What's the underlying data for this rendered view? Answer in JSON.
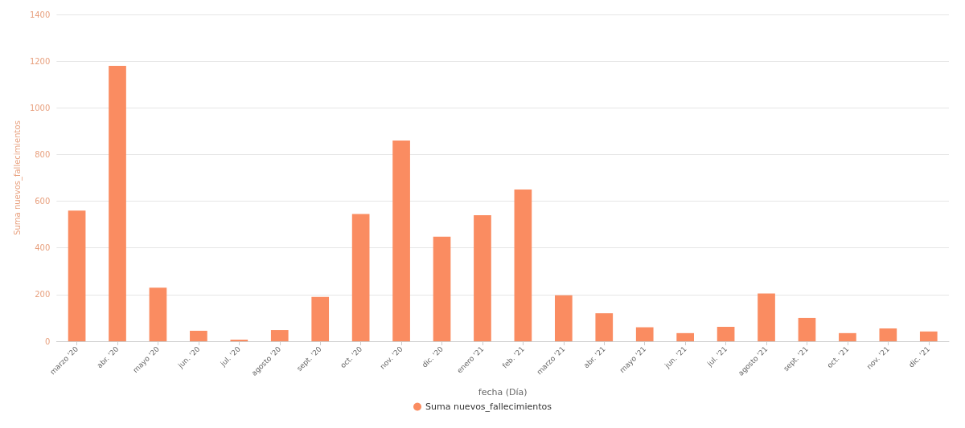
{
  "chart_data": {
    "type": "bar",
    "xlabel": "fecha (Día)",
    "ylabel": "Suma nuevos_fallecimientos",
    "categories": [
      "marzo '20",
      "abr. '20",
      "mayo '20",
      "jun. '20",
      "jul. '20",
      "agosto '20",
      "sept. '20",
      "oct. '20",
      "nov. '20",
      "dic. '20",
      "enero '21",
      "feb. '21",
      "marzo '21",
      "abr. '21",
      "mayo '21",
      "jun. '21",
      "jul. '21",
      "agosto '21",
      "sept. '21",
      "oct. '21",
      "nov. '21",
      "dic. '21"
    ],
    "series": [
      {
        "name": "Suma nuevos_fallecimientos",
        "color": "#fa8c61",
        "values": [
          560,
          1180,
          230,
          45,
          7,
          48,
          190,
          545,
          860,
          448,
          540,
          650,
          197,
          120,
          60,
          35,
          62,
          205,
          100,
          35,
          55,
          42
        ]
      }
    ],
    "ylim": [
      0,
      1400
    ],
    "yticks": [
      0,
      200,
      400,
      600,
      800,
      1000,
      1200,
      1400
    ],
    "grid": "y",
    "legend": "bottom"
  }
}
